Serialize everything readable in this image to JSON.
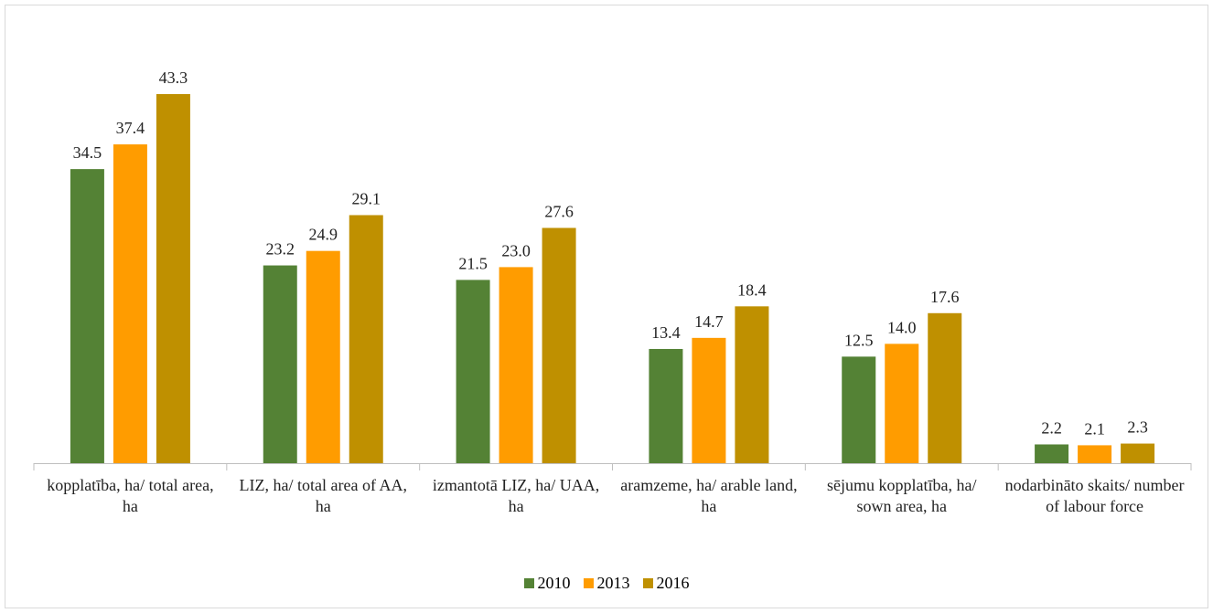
{
  "chart_data": {
    "type": "bar",
    "categories": [
      "kopplatība, ha/ total area, ha",
      "LIZ, ha/ total area of AA, ha",
      "izmantotā LIZ, ha/ UAA, ha",
      "aramzeme, ha/ arable land, ha",
      "sējumu kopplatība, ha/ sown area, ha",
      "nodarbināto skaits/ number of labour force"
    ],
    "series": [
      {
        "name": "2010",
        "color": "#548235",
        "values": [
          34.5,
          23.2,
          21.5,
          13.4,
          12.5,
          2.2
        ],
        "value_labels": [
          "34.5",
          "23.2",
          "21.5",
          "13.4",
          "12.5",
          "2.2"
        ]
      },
      {
        "name": "2013",
        "color": "#ff9c00",
        "values": [
          37.4,
          24.9,
          23.0,
          14.7,
          14.0,
          2.1
        ],
        "value_labels": [
          "37.4",
          "24.9",
          "23.0",
          "14.7",
          "14.0",
          "2.1"
        ]
      },
      {
        "name": "2016",
        "color": "#bf9000",
        "values": [
          43.3,
          29.1,
          27.6,
          18.4,
          17.6,
          2.3
        ],
        "value_labels": [
          "43.3",
          "29.1",
          "27.6",
          "18.4",
          "17.6",
          "2.3"
        ]
      }
    ],
    "legend": "bottom"
  }
}
